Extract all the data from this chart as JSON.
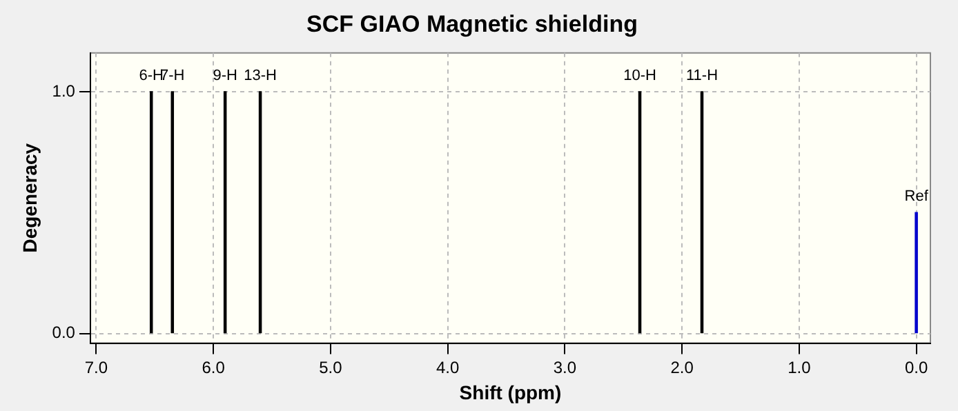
{
  "chart_data": {
    "type": "bar",
    "title": "SCF GIAO Magnetic shielding",
    "xlabel": "Shift (ppm)",
    "ylabel": "Degeneracy",
    "x": [
      6.53,
      6.35,
      5.9,
      5.6,
      2.36,
      1.83,
      0
    ],
    "values": [
      1,
      1,
      1,
      1,
      1,
      1,
      0.5
    ],
    "colors": [
      "#000000",
      "#000000",
      "#000000",
      "#000000",
      "#000000",
      "#000000",
      "#0000cc"
    ],
    "xlim": [
      7.05,
      -0.12
    ],
    "xticks": [
      {
        "value": 7,
        "label": "7.0"
      },
      {
        "value": 6,
        "label": "6.0"
      },
      {
        "value": 5,
        "label": "5.0"
      },
      {
        "value": 4,
        "label": "4.0"
      },
      {
        "value": 3,
        "label": "3.0"
      },
      {
        "value": 2,
        "label": "2.0"
      },
      {
        "value": 1,
        "label": "1.0"
      },
      {
        "value": 0,
        "label": "0.0"
      }
    ],
    "ylim": [
      -0.04,
      1.16
    ],
    "yticks": [
      {
        "value": 0,
        "label": "0.0"
      },
      {
        "value": 1,
        "label": "1.0"
      }
    ],
    "grid": true,
    "annotations": [
      {
        "text": "6-H",
        "x": 6.53,
        "y": 1
      },
      {
        "text": "7-H",
        "x": 6.35,
        "y": 1
      },
      {
        "text": "9-H",
        "x": 5.9,
        "y": 1
      },
      {
        "text": "13-H",
        "x": 5.6,
        "y": 1
      },
      {
        "text": "10-H",
        "x": 2.36,
        "y": 1
      },
      {
        "text": "11-H",
        "x": 1.83,
        "y": 1
      },
      {
        "text": "Ref",
        "x": 0,
        "y": 0.5
      }
    ]
  }
}
